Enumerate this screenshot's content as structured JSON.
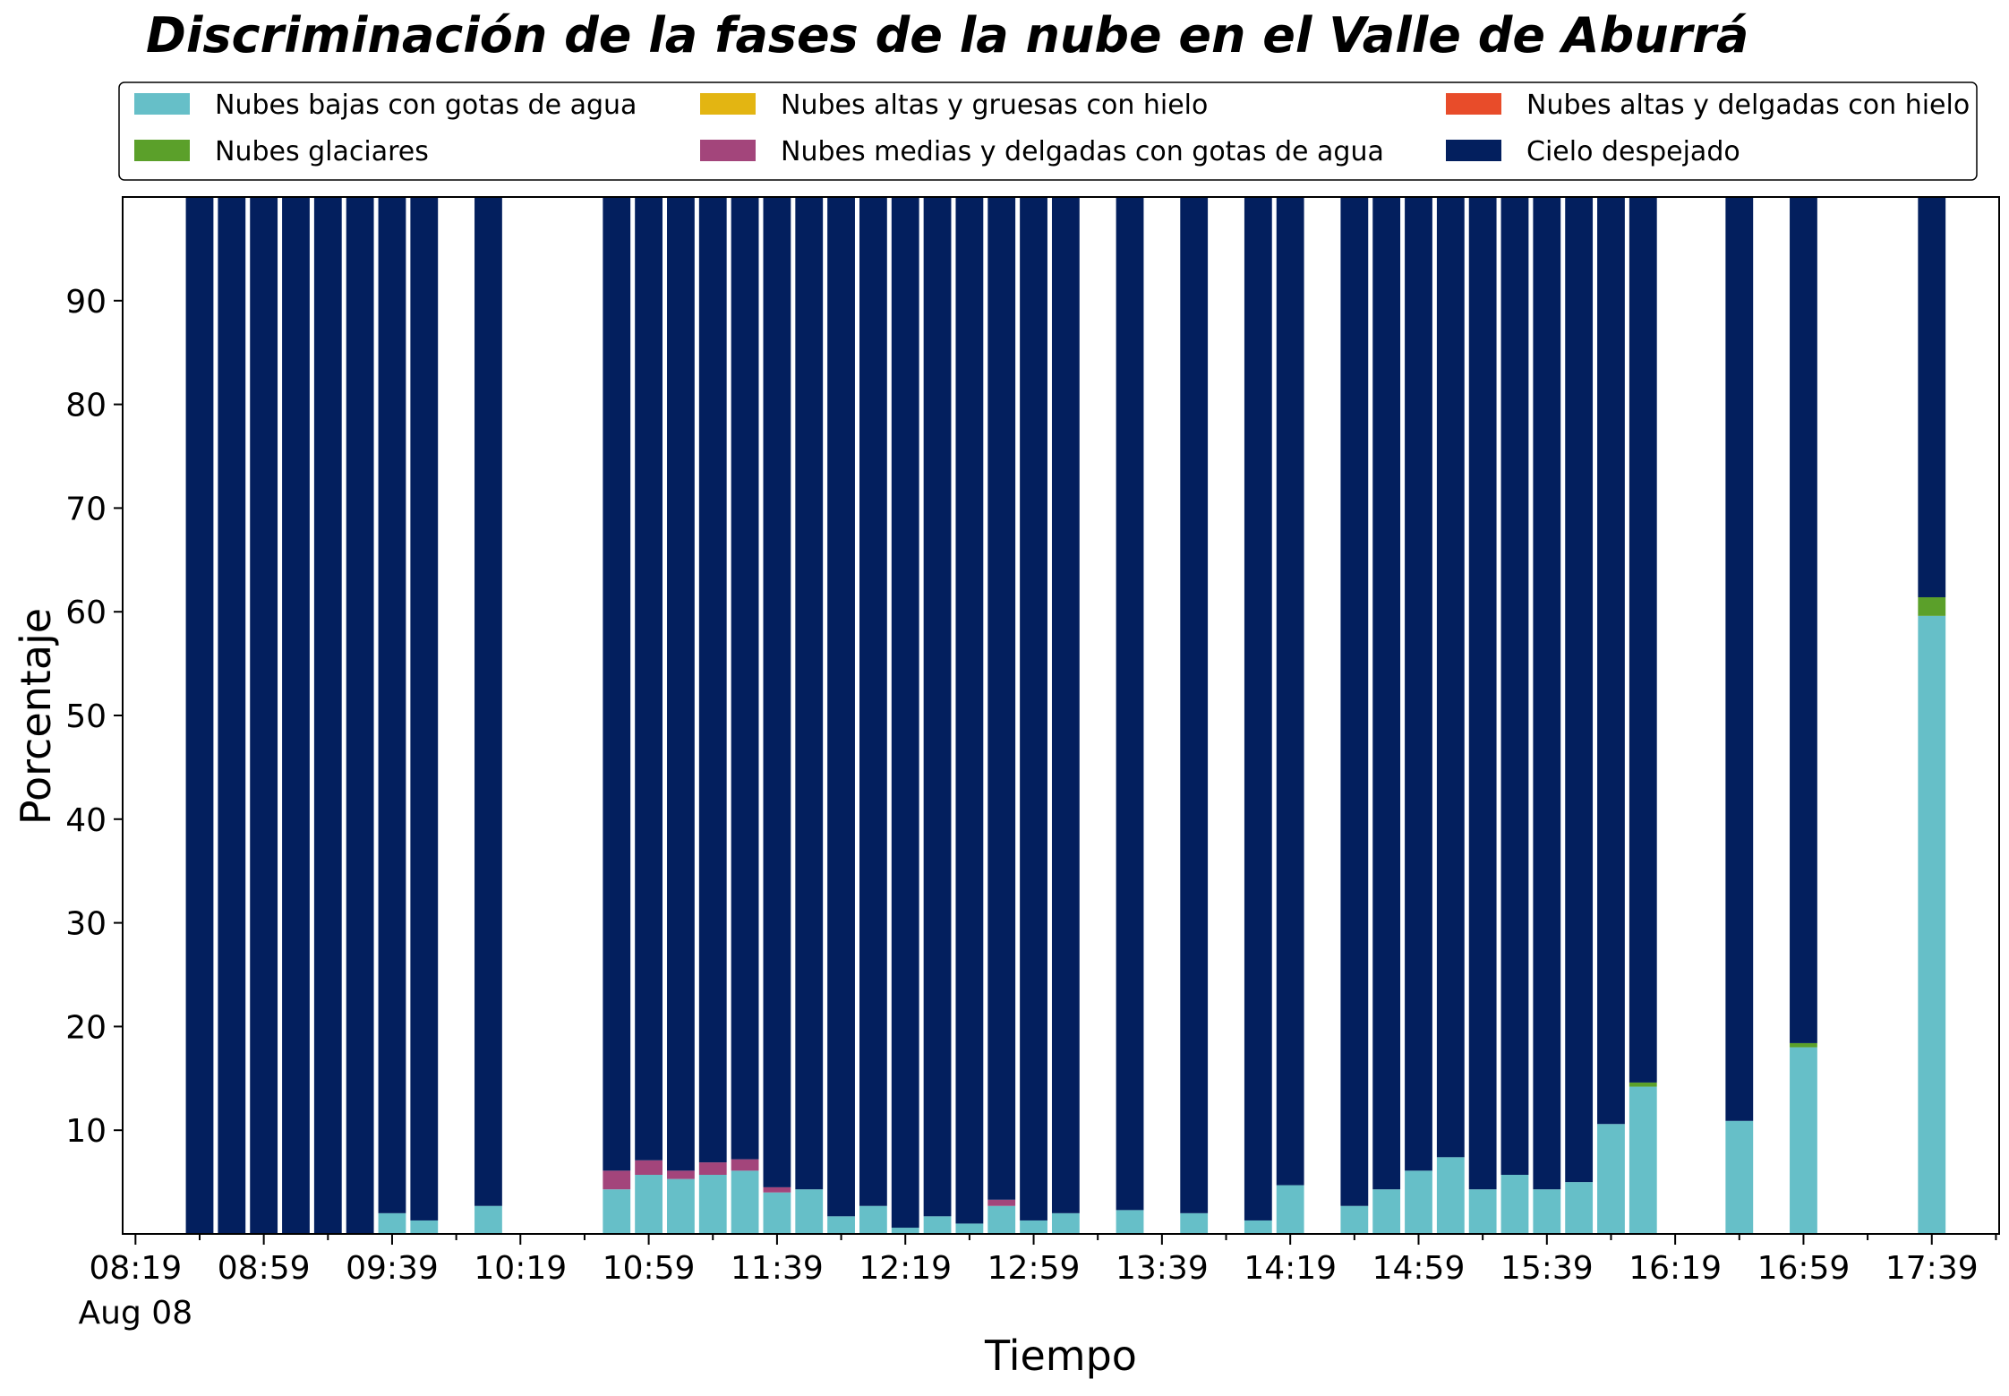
{
  "chart_data": {
    "type": "bar",
    "stacked": true,
    "title": "Discriminación de la fases de la nube en el Valle de Aburrá",
    "xlabel": "Tiempo",
    "ylabel": "Porcentaje",
    "ylim": [
      0,
      100
    ],
    "yticks": [
      10,
      20,
      30,
      40,
      50,
      60,
      70,
      80,
      90
    ],
    "xlim": [
      "08:15",
      "18:00"
    ],
    "xticks": [
      "08:19",
      "08:59",
      "09:39",
      "10:19",
      "10:59",
      "11:39",
      "12:19",
      "12:59",
      "13:39",
      "14:19",
      "14:59",
      "15:39",
      "16:19",
      "16:59",
      "17:39"
    ],
    "date_label": "Aug 08",
    "legend_position": "top",
    "grid": false,
    "series": [
      {
        "name": "Nubes bajas con gotas de agua",
        "color": "#66bfc8"
      },
      {
        "name": "Nubes glaciares",
        "color": "#5ba02a"
      },
      {
        "name": "Nubes altas y gruesas con hielo",
        "color": "#e3b512"
      },
      {
        "name": "Nubes medias y delgadas con gotas de agua",
        "color": "#a3457b"
      },
      {
        "name": "Nubes altas y delgadas con hielo",
        "color": "#e84c2a"
      },
      {
        "name": "Cielo despejado",
        "color": "#031f5e"
      }
    ],
    "bars": [
      {
        "time": "08:39",
        "values": [
          0,
          0,
          0,
          0,
          0,
          100
        ]
      },
      {
        "time": "08:49",
        "values": [
          0,
          0,
          0,
          0,
          0,
          100
        ]
      },
      {
        "time": "08:59",
        "values": [
          0,
          0,
          0,
          0,
          0,
          100
        ]
      },
      {
        "time": "09:09",
        "values": [
          0,
          0,
          0,
          0,
          0,
          100
        ]
      },
      {
        "time": "09:19",
        "values": [
          0,
          0,
          0,
          0,
          0,
          100
        ]
      },
      {
        "time": "09:29",
        "values": [
          0,
          0,
          0,
          0,
          0,
          100
        ]
      },
      {
        "time": "09:39",
        "values": [
          2,
          0,
          0,
          0,
          0,
          98
        ]
      },
      {
        "time": "09:49",
        "values": [
          1.3,
          0,
          0,
          0,
          0,
          98.7
        ]
      },
      {
        "time": "10:09",
        "values": [
          2.7,
          0,
          0,
          0,
          0,
          97.3
        ]
      },
      {
        "time": "10:49",
        "values": [
          4.3,
          0,
          0,
          1.8,
          0,
          93.9
        ]
      },
      {
        "time": "10:59",
        "values": [
          5.7,
          0,
          0,
          1.4,
          0,
          92.9
        ]
      },
      {
        "time": "11:09",
        "values": [
          5.3,
          0,
          0,
          0.8,
          0,
          93.9
        ]
      },
      {
        "time": "11:19",
        "values": [
          5.7,
          0,
          0,
          1.2,
          0,
          93.1
        ]
      },
      {
        "time": "11:29",
        "values": [
          6.1,
          0,
          0,
          1.1,
          0,
          92.8
        ]
      },
      {
        "time": "11:39",
        "values": [
          4,
          0,
          0,
          0.5,
          0,
          95.5
        ]
      },
      {
        "time": "11:49",
        "values": [
          4.3,
          0,
          0,
          0,
          0,
          95.7
        ]
      },
      {
        "time": "11:59",
        "values": [
          1.7,
          0,
          0,
          0,
          0,
          98.3
        ]
      },
      {
        "time": "12:09",
        "values": [
          2.7,
          0,
          0,
          0,
          0,
          97.3
        ]
      },
      {
        "time": "12:19",
        "values": [
          0.6,
          0,
          0,
          0,
          0,
          99.4
        ]
      },
      {
        "time": "12:29",
        "values": [
          1.7,
          0,
          0,
          0,
          0,
          98.3
        ]
      },
      {
        "time": "12:39",
        "values": [
          1,
          0,
          0,
          0,
          0,
          99
        ]
      },
      {
        "time": "12:49",
        "values": [
          2.7,
          0,
          0,
          0.6,
          0,
          96.7
        ]
      },
      {
        "time": "12:59",
        "values": [
          1.3,
          0,
          0,
          0,
          0,
          98.7
        ]
      },
      {
        "time": "13:09",
        "values": [
          2,
          0,
          0,
          0,
          0,
          98
        ]
      },
      {
        "time": "13:29",
        "values": [
          2.3,
          0,
          0,
          0,
          0,
          97.7
        ]
      },
      {
        "time": "13:49",
        "values": [
          2,
          0,
          0,
          0,
          0,
          98
        ]
      },
      {
        "time": "14:09",
        "values": [
          1.3,
          0,
          0,
          0,
          0,
          98.7
        ]
      },
      {
        "time": "14:19",
        "values": [
          4.7,
          0,
          0,
          0,
          0,
          95.3
        ]
      },
      {
        "time": "14:39",
        "values": [
          2.7,
          0,
          0,
          0,
          0,
          97.3
        ]
      },
      {
        "time": "14:49",
        "values": [
          4.3,
          0,
          0,
          0,
          0,
          95.7
        ]
      },
      {
        "time": "14:59",
        "values": [
          6.1,
          0,
          0,
          0,
          0,
          93.9
        ]
      },
      {
        "time": "15:09",
        "values": [
          7.4,
          0,
          0,
          0,
          0,
          92.6
        ]
      },
      {
        "time": "15:19",
        "values": [
          4.3,
          0,
          0,
          0,
          0,
          95.7
        ]
      },
      {
        "time": "15:29",
        "values": [
          5.7,
          0,
          0,
          0,
          0,
          94.3
        ]
      },
      {
        "time": "15:39",
        "values": [
          4.3,
          0,
          0,
          0,
          0,
          95.7
        ]
      },
      {
        "time": "15:49",
        "values": [
          5,
          0,
          0,
          0,
          0,
          95
        ]
      },
      {
        "time": "15:59",
        "values": [
          10.6,
          0,
          0,
          0,
          0,
          89.4
        ]
      },
      {
        "time": "16:09",
        "values": [
          14.2,
          0.4,
          0,
          0,
          0,
          85.4
        ]
      },
      {
        "time": "16:39",
        "values": [
          10.9,
          0,
          0,
          0,
          0,
          89.1
        ]
      },
      {
        "time": "16:59",
        "values": [
          18,
          0.4,
          0,
          0,
          0,
          81.6
        ]
      },
      {
        "time": "17:39",
        "values": [
          59.6,
          1.8,
          0,
          0,
          0,
          38.6
        ]
      }
    ]
  }
}
